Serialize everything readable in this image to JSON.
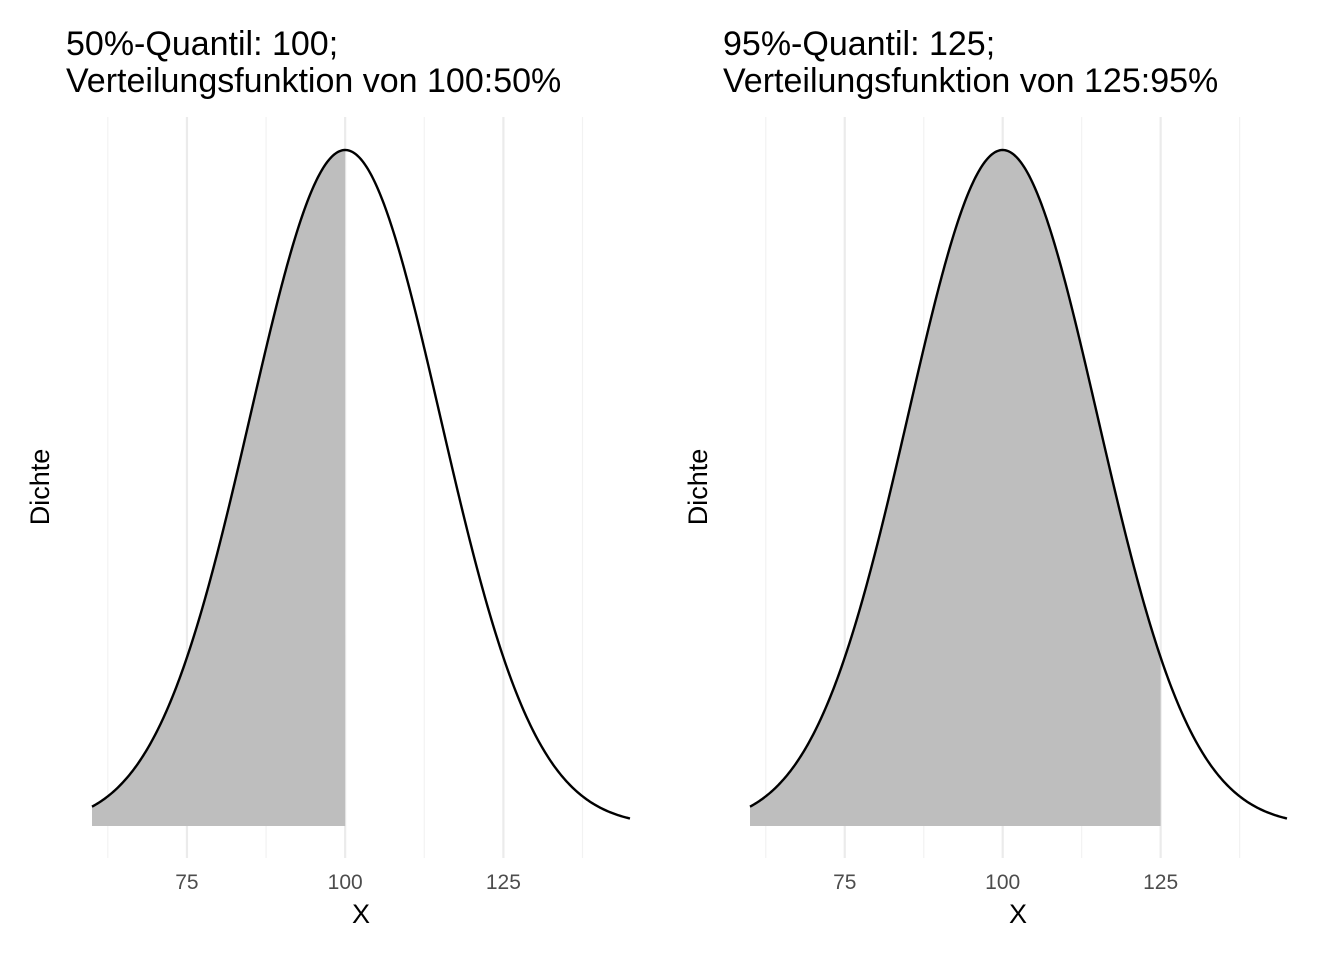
{
  "chart_data": [
    {
      "type": "area",
      "title_lines": [
        "50%-Quantil: 100;",
        "Verteilungsfunktion von 100:50%"
      ],
      "xlabel": "X",
      "ylabel": "Dichte",
      "x_ticks": [
        75,
        100,
        125
      ],
      "x_tick_labels": [
        "75",
        "100",
        "125"
      ],
      "xlim": [
        60,
        145
      ],
      "y_ticks_shown": false,
      "grid": "vertical",
      "distribution": {
        "family": "normal",
        "mean": 100,
        "sd": 15
      },
      "shade_from": 60,
      "shade_to": 100,
      "quantile_p": 0.5,
      "quantile_value": 100,
      "curve_color": "#000000",
      "fill_color": "#bebebe"
    },
    {
      "type": "area",
      "title_lines": [
        "95%-Quantil: 125;",
        "Verteilungsfunktion von 125:95%"
      ],
      "xlabel": "X",
      "ylabel": "Dichte",
      "x_ticks": [
        75,
        100,
        125
      ],
      "x_tick_labels": [
        "75",
        "100",
        "125"
      ],
      "xlim": [
        60,
        145
      ],
      "y_ticks_shown": false,
      "grid": "vertical",
      "distribution": {
        "family": "normal",
        "mean": 100,
        "sd": 15
      },
      "shade_from": 60,
      "shade_to": 125,
      "quantile_p": 0.95,
      "quantile_value": 125,
      "curve_color": "#000000",
      "fill_color": "#bebebe"
    }
  ]
}
